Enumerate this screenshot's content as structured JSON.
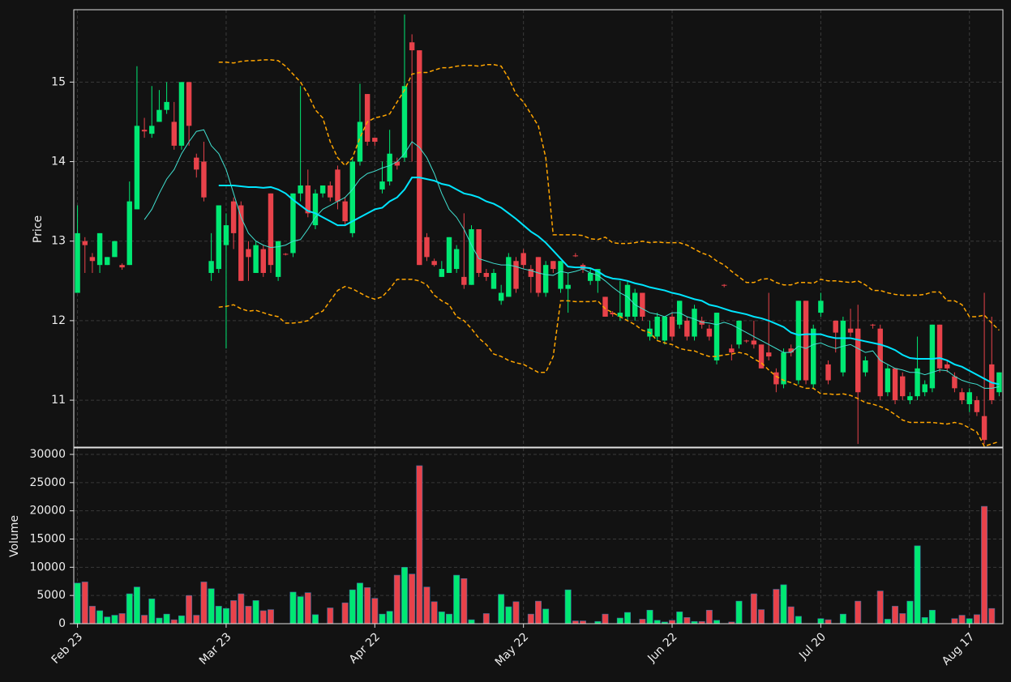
{
  "chart_data": {
    "type": "candlestick",
    "categories": [
      "Feb 23",
      null,
      null,
      null,
      null,
      null,
      null,
      null,
      null,
      null,
      null,
      null,
      null,
      null,
      null,
      null,
      null,
      null,
      null,
      null,
      "Mar 23",
      null,
      null,
      null,
      null,
      null,
      null,
      null,
      null,
      null,
      null,
      null,
      null,
      null,
      null,
      null,
      null,
      null,
      null,
      null,
      "Apr 22",
      null,
      null,
      null,
      null,
      null,
      null,
      null,
      null,
      null,
      null,
      null,
      null,
      null,
      null,
      null,
      null,
      null,
      null,
      null,
      "May 22",
      null,
      null,
      null,
      null,
      null,
      null,
      null,
      null,
      null,
      null,
      null,
      null,
      null,
      null,
      null,
      null,
      null,
      null,
      null,
      "Jun 22",
      null,
      null,
      null,
      null,
      null,
      null,
      null,
      null,
      null,
      null,
      null,
      null,
      null,
      null,
      null,
      null,
      null,
      null,
      null,
      "Jul 20",
      null,
      null,
      null,
      null,
      null,
      null,
      null,
      null,
      null,
      null,
      null,
      null,
      null,
      null,
      null,
      null,
      null,
      null,
      null,
      "Aug 17",
      null,
      null,
      null,
      null
    ],
    "open": [
      12.35,
      13.0,
      12.8,
      12.7,
      12.7,
      12.8,
      12.7,
      12.7,
      13.4,
      14.4,
      14.35,
      14.5,
      14.65,
      14.5,
      14.2,
      15.0,
      14.05,
      14.0,
      12.6,
      12.65,
      12.95,
      13.5,
      13.45,
      12.9,
      12.6,
      12.9,
      13.6,
      12.55,
      12.84,
      12.85,
      13.6,
      13.7,
      13.2,
      13.6,
      13.7,
      13.9,
      13.5,
      13.1,
      14.0,
      14.85,
      14.3,
      13.65,
      13.75,
      14.0,
      14.05,
      15.5,
      15.4,
      13.05,
      12.75,
      12.55,
      12.6,
      12.65,
      12.55,
      12.45,
      13.15,
      12.6,
      12.4,
      12.25,
      12.3,
      12.75,
      12.85,
      12.65,
      12.8,
      12.35,
      12.75,
      12.4,
      12.4,
      12.82,
      12.7,
      12.5,
      12.5,
      12.3,
      12.1,
      12.05,
      12.05,
      12.05,
      12.35,
      11.8,
      11.8,
      11.75,
      12.05,
      11.95,
      12.0,
      11.8,
      12.0,
      11.9,
      11.5,
      12.45,
      11.65,
      11.7,
      11.75,
      11.75,
      11.7,
      11.6,
      11.35,
      11.2,
      11.65,
      11.25,
      12.25,
      11.2,
      12.1,
      11.45,
      12.0,
      11.35,
      11.9,
      11.9,
      11.35,
      11.95,
      11.9,
      11.1,
      11.4,
      11.3,
      11.0,
      11.05,
      11.1,
      11.15,
      11.95,
      11.45,
      11.3,
      11.1,
      10.95,
      11.0,
      10.8,
      11.45,
      11.1
    ],
    "high": [
      13.45,
      13.05,
      12.85,
      13.1,
      12.8,
      13.0,
      12.72,
      13.75,
      15.2,
      14.55,
      14.95,
      14.9,
      15.0,
      14.75,
      15.0,
      15.0,
      14.1,
      14.25,
      13.1,
      13.45,
      13.35,
      13.55,
      13.5,
      13.0,
      13.0,
      12.95,
      13.6,
      13.0,
      12.85,
      13.6,
      14.95,
      13.9,
      13.65,
      13.7,
      13.75,
      13.95,
      13.55,
      14.05,
      14.98,
      14.85,
      14.3,
      14.0,
      14.4,
      14.05,
      15.85,
      15.6,
      15.4,
      13.1,
      12.78,
      12.75,
      13.05,
      12.95,
      13.35,
      13.2,
      13.15,
      12.65,
      12.65,
      12.45,
      12.85,
      12.8,
      12.9,
      12.7,
      12.8,
      12.75,
      12.75,
      12.75,
      12.6,
      12.85,
      12.72,
      12.65,
      12.65,
      12.3,
      12.12,
      12.5,
      12.5,
      12.4,
      12.35,
      12.0,
      12.1,
      12.05,
      12.1,
      12.25,
      12.05,
      12.2,
      12.05,
      11.95,
      12.1,
      12.46,
      11.7,
      12.0,
      11.76,
      12.0,
      11.7,
      12.35,
      11.4,
      11.65,
      11.7,
      12.25,
      12.25,
      11.95,
      12.35,
      11.5,
      12.0,
      12.05,
      12.15,
      12.2,
      11.55,
      11.96,
      11.95,
      11.45,
      11.4,
      11.35,
      11.1,
      11.8,
      11.25,
      11.95,
      11.95,
      11.5,
      11.35,
      11.15,
      11.15,
      11.05,
      12.35,
      12.05,
      11.35
    ],
    "low": [
      12.35,
      12.6,
      12.6,
      12.6,
      12.7,
      12.8,
      12.64,
      12.7,
      13.4,
      14.3,
      14.3,
      14.5,
      14.6,
      14.15,
      14.15,
      14.2,
      13.8,
      13.5,
      12.5,
      12.6,
      11.65,
      12.9,
      12.5,
      12.5,
      12.6,
      12.55,
      12.6,
      12.5,
      12.82,
      12.8,
      13.5,
      13.3,
      13.15,
      13.55,
      13.5,
      13.4,
      13.2,
      13.05,
      13.95,
      14.2,
      14.2,
      13.6,
      13.7,
      13.9,
      14.0,
      14.0,
      12.7,
      12.75,
      12.68,
      12.55,
      12.6,
      12.6,
      12.4,
      12.45,
      12.55,
      12.5,
      12.4,
      12.2,
      12.3,
      12.35,
      12.65,
      12.35,
      12.3,
      12.3,
      12.6,
      12.35,
      12.1,
      12.8,
      12.6,
      12.45,
      12.35,
      12.05,
      12.05,
      12.0,
      12.0,
      12.0,
      12.0,
      11.75,
      11.75,
      11.7,
      11.75,
      11.9,
      11.75,
      11.75,
      11.9,
      11.75,
      11.45,
      12.42,
      11.5,
      11.65,
      11.72,
      11.65,
      11.4,
      11.5,
      11.1,
      11.15,
      11.55,
      11.2,
      11.2,
      11.15,
      12.05,
      11.2,
      11.6,
      11.3,
      11.8,
      10.45,
      11.3,
      11.9,
      11.0,
      11.05,
      10.95,
      11.0,
      10.95,
      11.0,
      11.05,
      11.1,
      11.35,
      11.35,
      11.1,
      10.95,
      10.85,
      10.8,
      10.45,
      10.95,
      11.05
    ],
    "close": [
      13.1,
      12.95,
      12.75,
      13.1,
      12.8,
      13.0,
      12.67,
      13.5,
      14.45,
      14.38,
      14.45,
      14.65,
      14.75,
      14.2,
      15.0,
      14.45,
      13.9,
      13.55,
      12.75,
      13.45,
      13.2,
      13.1,
      12.5,
      12.8,
      12.95,
      12.6,
      12.7,
      13.0,
      12.83,
      13.6,
      13.7,
      13.35,
      13.6,
      13.7,
      13.55,
      13.5,
      13.25,
      14.0,
      14.5,
      14.25,
      14.25,
      13.75,
      14.1,
      13.95,
      14.95,
      15.4,
      12.7,
      12.8,
      12.7,
      12.65,
      13.05,
      12.9,
      12.45,
      13.15,
      12.6,
      12.55,
      12.6,
      12.35,
      12.8,
      12.4,
      12.7,
      12.55,
      12.35,
      12.7,
      12.65,
      12.75,
      12.45,
      12.81,
      12.65,
      12.6,
      12.65,
      12.05,
      12.08,
      12.1,
      12.45,
      12.35,
      12.05,
      11.9,
      12.05,
      12.05,
      11.8,
      12.25,
      11.8,
      12.15,
      11.95,
      11.8,
      12.1,
      12.44,
      11.6,
      12.0,
      11.74,
      11.7,
      11.4,
      11.55,
      11.2,
      11.6,
      11.6,
      12.25,
      11.25,
      11.9,
      12.25,
      11.25,
      11.85,
      12.0,
      11.85,
      11.1,
      11.5,
      11.94,
      11.05,
      11.4,
      11.0,
      11.05,
      11.05,
      11.4,
      11.2,
      11.95,
      11.4,
      11.4,
      11.15,
      11.0,
      11.1,
      10.85,
      10.5,
      11.0,
      11.35
    ],
    "up_color": "#00e873",
    "down_color": "#e8424a",
    "ylabel": "Price",
    "ylim": [
      10.41,
      15.91
    ],
    "yticks": [
      11,
      12,
      13,
      14,
      15
    ],
    "grid": true,
    "overlays": [
      {
        "color": "#40e0d0",
        "width": 1,
        "dashed": false,
        "values": [
          null,
          null,
          null,
          null,
          null,
          null,
          null,
          null,
          null,
          13.27,
          13.4,
          13.6,
          13.78,
          13.9,
          14.1,
          14.25,
          14.38,
          14.4,
          14.2,
          14.1,
          13.9,
          13.6,
          13.3,
          13.1,
          13.0,
          12.95,
          12.92,
          12.93,
          12.95,
          13.0,
          13.02,
          13.15,
          13.3,
          13.4,
          13.45,
          13.5,
          13.55,
          13.65,
          13.78,
          13.85,
          13.88,
          13.92,
          13.95,
          14.0,
          14.1,
          14.25,
          14.18,
          14.05,
          13.85,
          13.6,
          13.4,
          13.3,
          13.15,
          12.95,
          12.78,
          12.75,
          12.72,
          12.7,
          12.7,
          12.68,
          12.65,
          12.63,
          12.6,
          12.58,
          12.57,
          12.62,
          12.6,
          12.62,
          12.65,
          12.6,
          12.57,
          12.5,
          12.42,
          12.35,
          12.3,
          12.2,
          12.15,
          12.1,
          12.08,
          12.05,
          12.1,
          12.1,
          12.05,
          12.02,
          11.98,
          11.97,
          11.95,
          11.98,
          11.95,
          11.9,
          11.85,
          11.8,
          11.75,
          11.7,
          11.65,
          11.6,
          11.6,
          11.68,
          11.65,
          11.7,
          11.72,
          11.68,
          11.65,
          11.68,
          11.7,
          11.65,
          11.6,
          11.62,
          11.5,
          11.45,
          11.4,
          11.38,
          11.35,
          11.35,
          11.32,
          11.35,
          11.38,
          11.37,
          11.3,
          11.25,
          11.22,
          11.2,
          11.15,
          11.15,
          11.17
        ]
      },
      {
        "color": "#00e5ff",
        "width": 2,
        "dashed": false,
        "values": [
          null,
          null,
          null,
          null,
          null,
          null,
          null,
          null,
          null,
          null,
          null,
          null,
          null,
          null,
          null,
          null,
          null,
          null,
          null,
          13.7,
          13.7,
          13.7,
          13.69,
          13.68,
          13.68,
          13.67,
          13.68,
          13.65,
          13.6,
          13.52,
          13.45,
          13.38,
          13.35,
          13.3,
          13.25,
          13.2,
          13.2,
          13.25,
          13.3,
          13.35,
          13.4,
          13.42,
          13.5,
          13.55,
          13.65,
          13.8,
          13.8,
          13.78,
          13.76,
          13.72,
          13.7,
          13.65,
          13.6,
          13.58,
          13.55,
          13.5,
          13.47,
          13.42,
          13.35,
          13.28,
          13.2,
          13.12,
          13.06,
          12.98,
          12.88,
          12.78,
          12.68,
          12.67,
          12.67,
          12.66,
          12.62,
          12.56,
          12.53,
          12.52,
          12.5,
          12.47,
          12.45,
          12.42,
          12.4,
          12.38,
          12.35,
          12.33,
          12.3,
          12.27,
          12.25,
          12.2,
          12.18,
          12.15,
          12.12,
          12.1,
          12.08,
          12.05,
          12.03,
          12.0,
          11.96,
          11.92,
          11.85,
          11.82,
          11.83,
          11.83,
          11.83,
          11.8,
          11.78,
          11.78,
          11.78,
          11.76,
          11.74,
          11.72,
          11.7,
          11.67,
          11.63,
          11.57,
          11.53,
          11.52,
          11.52,
          11.52,
          11.53,
          11.5,
          11.45,
          11.42,
          11.37,
          11.32,
          11.27,
          11.22,
          11.2
        ]
      },
      {
        "color": "#ffa500",
        "width": 1.5,
        "dashed": true,
        "values": [
          null,
          null,
          null,
          null,
          null,
          null,
          null,
          null,
          null,
          null,
          null,
          null,
          null,
          null,
          null,
          null,
          null,
          null,
          null,
          15.25,
          15.25,
          15.24,
          15.26,
          15.27,
          15.27,
          15.28,
          15.28,
          15.27,
          15.2,
          15.1,
          15.0,
          14.85,
          14.65,
          14.55,
          14.25,
          14.05,
          13.95,
          14.05,
          14.3,
          14.5,
          14.55,
          14.57,
          14.6,
          14.75,
          14.9,
          15.1,
          15.12,
          15.12,
          15.15,
          15.18,
          15.18,
          15.2,
          15.21,
          15.21,
          15.2,
          15.22,
          15.22,
          15.2,
          15.05,
          14.85,
          14.75,
          14.6,
          14.45,
          14.05,
          13.08,
          13.08,
          13.08,
          13.08,
          13.07,
          13.03,
          13.02,
          13.05,
          12.98,
          12.97,
          12.97,
          12.98,
          13.0,
          12.98,
          12.99,
          12.98,
          12.98,
          12.98,
          12.95,
          12.9,
          12.85,
          12.82,
          12.75,
          12.7,
          12.62,
          12.55,
          12.48,
          12.48,
          12.52,
          12.53,
          12.48,
          12.45,
          12.45,
          12.48,
          12.48,
          12.47,
          12.52,
          12.5,
          12.5,
          12.49,
          12.48,
          12.5,
          12.45,
          12.38,
          12.38,
          12.35,
          12.33,
          12.32,
          12.32,
          12.32,
          12.33,
          12.36,
          12.36,
          12.25,
          12.25,
          12.2,
          12.05,
          12.05,
          12.07,
          11.97,
          11.88
        ]
      },
      {
        "color": "#ffa500",
        "width": 1.5,
        "dashed": true,
        "values": [
          null,
          null,
          null,
          null,
          null,
          null,
          null,
          null,
          null,
          null,
          null,
          null,
          null,
          null,
          null,
          null,
          null,
          null,
          null,
          12.17,
          12.18,
          12.2,
          12.15,
          12.12,
          12.13,
          12.1,
          12.07,
          12.05,
          11.97,
          11.97,
          11.98,
          12.0,
          12.08,
          12.12,
          12.25,
          12.38,
          12.43,
          12.4,
          12.35,
          12.3,
          12.27,
          12.3,
          12.4,
          12.52,
          12.52,
          12.52,
          12.5,
          12.45,
          12.32,
          12.25,
          12.2,
          12.05,
          12.0,
          11.9,
          11.78,
          11.7,
          11.58,
          11.55,
          11.5,
          11.47,
          11.45,
          11.4,
          11.35,
          11.35,
          11.55,
          12.25,
          12.25,
          12.24,
          12.24,
          12.24,
          12.25,
          12.15,
          12.1,
          12.05,
          12.0,
          11.95,
          11.88,
          11.85,
          11.75,
          11.72,
          11.7,
          11.65,
          11.63,
          11.62,
          11.58,
          11.55,
          11.55,
          11.57,
          11.58,
          11.6,
          11.58,
          11.52,
          11.47,
          11.38,
          11.3,
          11.25,
          11.22,
          11.18,
          11.15,
          11.15,
          11.08,
          11.08,
          11.07,
          11.08,
          11.06,
          11.02,
          10.97,
          10.95,
          10.92,
          10.88,
          10.82,
          10.75,
          10.72,
          10.72,
          10.72,
          10.72,
          10.71,
          10.7,
          10.72,
          10.7,
          10.65,
          10.6,
          10.42,
          10.45,
          10.48
        ]
      }
    ],
    "volume": {
      "ylabel": "Volume",
      "ylim": [
        0,
        31150
      ],
      "yticks": [
        0,
        5000,
        10000,
        15000,
        20000,
        25000,
        30000
      ],
      "values": [
        7200,
        7400,
        3100,
        2300,
        1200,
        1500,
        1800,
        5300,
        6500,
        1500,
        4400,
        1000,
        1700,
        700,
        1400,
        5000,
        1500,
        7400,
        6200,
        3100,
        2700,
        4100,
        5300,
        3100,
        4100,
        2300,
        2500,
        0,
        0,
        5600,
        4800,
        5500,
        1600,
        0,
        2800,
        0,
        3700,
        6000,
        7200,
        6400,
        4500,
        1700,
        2200,
        8600,
        10000,
        8800,
        28000,
        6500,
        3900,
        2100,
        1700,
        8600,
        8000,
        700,
        0,
        1800,
        0,
        5200,
        3000,
        3900,
        0,
        1700,
        4000,
        2600,
        0,
        0,
        6000,
        500,
        500,
        0,
        400,
        1700,
        0,
        1000,
        2000,
        0,
        800,
        2400,
        600,
        300,
        600,
        2100,
        1100,
        400,
        400,
        2400,
        600,
        0,
        300,
        4000,
        0,
        5300,
        2500,
        0,
        6100,
        6900,
        3000,
        1300,
        0,
        0,
        900,
        700,
        0,
        1700,
        0,
        4000,
        0,
        0,
        5800,
        800,
        3100,
        1800,
        4000,
        13800,
        1100,
        2400,
        0,
        0,
        900,
        1500,
        900,
        1600,
        20800,
        2700,
        0
      ]
    }
  }
}
